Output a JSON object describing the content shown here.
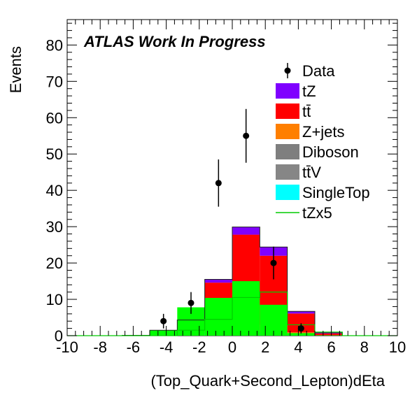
{
  "chart_data": {
    "type": "bar",
    "title": "ATLAS Work In Progress",
    "xlabel": "(Top_Quark+Second_Lepton)dEta",
    "ylabel": "Events",
    "xlim": [
      -10,
      10
    ],
    "ylim": [
      0,
      87
    ],
    "bin_edges": [
      -10,
      -8.3333,
      -6.6667,
      -5,
      -3.3333,
      -1.6667,
      0,
      1.6667,
      3.3333,
      5,
      6.6667,
      8.3333,
      10
    ],
    "x_ticks": [
      "-10",
      "-8",
      "-6",
      "-4",
      "-2",
      "0",
      "2",
      "4",
      "6",
      "8",
      "10"
    ],
    "y_ticks": [
      "0",
      "10",
      "20",
      "30",
      "40",
      "50",
      "60",
      "70",
      "80"
    ],
    "stack_order": [
      "SingleTop",
      "Diboson",
      "ttV",
      "Z+jets",
      "tt",
      "tZ"
    ],
    "series": [
      {
        "name": "tZ",
        "key": "tZ",
        "label": "tZ",
        "color": "#7f00ff",
        "values": [
          0,
          0,
          0,
          0,
          0.3,
          0.9,
          2.1,
          2.4,
          0.6,
          0.2,
          0,
          0
        ]
      },
      {
        "name": "tt",
        "key": "tt",
        "label": "tt̄",
        "color": "#ff0000",
        "values": [
          0,
          0,
          0.1,
          0.6,
          1.3,
          4.5,
          18,
          19,
          5.2,
          0.6,
          0,
          0
        ]
      },
      {
        "name": "Z+jets",
        "key": "Z+jets",
        "label": "Z+jets",
        "color": "#ff7f00",
        "values": [
          0,
          0,
          0,
          0.6,
          1.8,
          7.5,
          7.2,
          1.8,
          0.5,
          0,
          0,
          0
        ]
      },
      {
        "name": "Diboson",
        "key": "Diboson",
        "label": "Diboson",
        "color": "#7f7f7f",
        "values": [
          0,
          0,
          0,
          0.1,
          0.5,
          1.5,
          1.4,
          0.6,
          0.2,
          0,
          0,
          0
        ]
      },
      {
        "name": "ttV",
        "key": "ttV",
        "label": "tt̄V",
        "color": "#868686",
        "values": [
          0,
          0,
          0,
          0.1,
          0.2,
          0.6,
          0.6,
          0.3,
          0.1,
          0,
          0,
          0
        ]
      },
      {
        "name": "SingleTop",
        "key": "SingleTop",
        "label": "SingleTop",
        "color": "#00ffff",
        "values": [
          0,
          0,
          0,
          0.1,
          0.2,
          0.5,
          0.6,
          0.3,
          0.1,
          0,
          0,
          0
        ]
      }
    ],
    "green_region": {
      "color": "#00ff00",
      "values": [
        0,
        0,
        0.1,
        1.5,
        7.8,
        10.4,
        15,
        8.5,
        0.7,
        0.1,
        0,
        0
      ]
    },
    "tzx5_line": {
      "name": "tZx5",
      "color": "#00cc00",
      "values": [
        0,
        0,
        0,
        0,
        1.5,
        4.5,
        10.5,
        12,
        3,
        1,
        0,
        0
      ]
    },
    "data": {
      "name": "Data",
      "label": "Data",
      "points": [
        {
          "x": -4.1667,
          "y": 4,
          "err": 2
        },
        {
          "x": -2.5,
          "y": 9,
          "err": 3
        },
        {
          "x": -0.8333,
          "y": 42,
          "err": 6.5
        },
        {
          "x": 0.8333,
          "y": 55,
          "err": 7.4
        },
        {
          "x": 2.5,
          "y": 20,
          "err": 4.5
        },
        {
          "x": 4.1667,
          "y": 2,
          "err": 1.4
        }
      ]
    },
    "legend": [
      {
        "label": "Data",
        "kind": "marker",
        "color": "#000000"
      },
      {
        "label": "tZ",
        "kind": "box",
        "color": "#7f00ff"
      },
      {
        "label": "tt̄",
        "kind": "box",
        "color": "#ff0000"
      },
      {
        "label": "Z+jets",
        "kind": "box",
        "color": "#ff7f00"
      },
      {
        "label": "Diboson",
        "kind": "box",
        "color": "#7f7f7f"
      },
      {
        "label": "tt̄V",
        "kind": "box",
        "color": "#868686"
      },
      {
        "label": "SingleTop",
        "kind": "box",
        "color": "#00ffff"
      },
      {
        "label": "tZx5",
        "kind": "line",
        "color": "#00cc00"
      }
    ],
    "legend_placement": "top-right",
    "grid": false
  }
}
